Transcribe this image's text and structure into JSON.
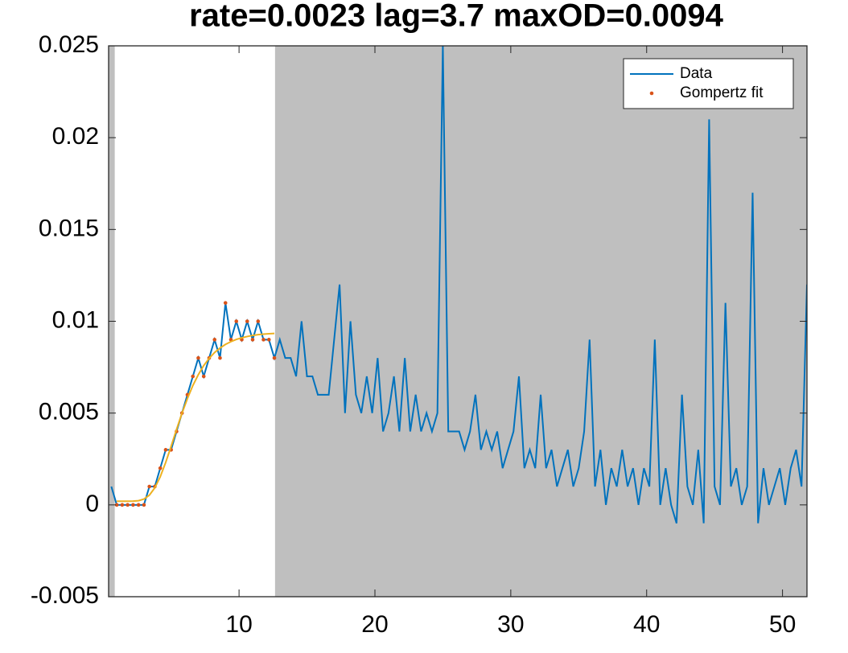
{
  "chart_data": {
    "type": "line",
    "title": "rate=0.0023 lag=3.7 maxOD=0.0094",
    "xlim": [
      0.4,
      51.8
    ],
    "ylim": [
      -0.005,
      0.025
    ],
    "xticks": [
      10,
      20,
      30,
      40,
      50
    ],
    "yticks": [
      -0.005,
      0,
      0.005,
      0.01,
      0.015,
      0.02,
      0.025
    ],
    "shaded_regions": [
      [
        0.4,
        0.85
      ],
      [
        12.65,
        51.8
      ]
    ],
    "shade_color": "#bfbfbf",
    "legend": "upper right",
    "series": [
      {
        "name": "Data",
        "color": "#0072bd",
        "style": "line",
        "x": [
          0.6,
          1.0,
          1.4,
          1.8,
          2.2,
          2.6,
          3.0,
          3.4,
          3.8,
          4.2,
          4.6,
          5.0,
          5.4,
          5.8,
          6.2,
          6.6,
          7.0,
          7.4,
          7.8,
          8.2,
          8.6,
          9.0,
          9.4,
          9.8,
          10.2,
          10.6,
          11.0,
          11.4,
          11.8,
          12.2,
          12.6,
          13.0,
          13.4,
          13.8,
          14.2,
          14.6,
          15.0,
          15.4,
          15.8,
          16.2,
          16.6,
          17.0,
          17.4,
          17.8,
          18.2,
          18.6,
          19.0,
          19.4,
          19.8,
          20.2,
          20.6,
          21.0,
          21.4,
          21.8,
          22.2,
          22.6,
          23.0,
          23.4,
          23.8,
          24.2,
          24.6,
          25.0,
          25.4,
          25.8,
          26.2,
          26.6,
          27.0,
          27.4,
          27.8,
          28.2,
          28.6,
          29.0,
          29.4,
          29.8,
          30.2,
          30.6,
          31.0,
          31.4,
          31.8,
          32.2,
          32.6,
          33.0,
          33.4,
          33.8,
          34.2,
          34.6,
          35.0,
          35.4,
          35.8,
          36.2,
          36.6,
          37.0,
          37.4,
          37.8,
          38.2,
          38.6,
          39.0,
          39.4,
          39.8,
          40.2,
          40.6,
          41.0,
          41.4,
          41.8,
          42.2,
          42.6,
          43.0,
          43.4,
          43.8,
          44.2,
          44.6,
          45.0,
          45.4,
          45.8,
          46.2,
          46.6,
          47.0,
          47.4,
          47.8,
          48.2,
          48.6,
          49.0,
          49.4,
          49.8,
          50.2,
          50.6,
          51.0,
          51.4,
          51.8
        ],
        "values": [
          0.001,
          0,
          0,
          0,
          0,
          0,
          0,
          0.001,
          0.001,
          0.002,
          0.003,
          0.003,
          0.004,
          0.005,
          0.006,
          0.007,
          0.008,
          0.007,
          0.008,
          0.009,
          0.008,
          0.011,
          0.009,
          0.01,
          0.009,
          0.01,
          0.009,
          0.01,
          0.009,
          0.009,
          0.008,
          0.009,
          0.008,
          0.008,
          0.007,
          0.01,
          0.007,
          0.007,
          0.006,
          0.006,
          0.006,
          0.009,
          0.012,
          0.005,
          0.01,
          0.006,
          0.005,
          0.007,
          0.005,
          0.008,
          0.004,
          0.005,
          0.007,
          0.004,
          0.008,
          0.004,
          0.006,
          0.004,
          0.005,
          0.004,
          0.005,
          0.025,
          0.004,
          0.004,
          0.004,
          0.003,
          0.004,
          0.006,
          0.003,
          0.004,
          0.003,
          0.004,
          0.002,
          0.003,
          0.004,
          0.007,
          0.002,
          0.003,
          0.002,
          0.006,
          0.002,
          0.003,
          0.001,
          0.002,
          0.003,
          0.001,
          0.002,
          0.004,
          0.009,
          0.001,
          0.003,
          0,
          0.002,
          0.001,
          0.003,
          0.001,
          0.002,
          0,
          0.002,
          0.001,
          0.009,
          0,
          0.002,
          0,
          -0.001,
          0.006,
          0.001,
          0,
          0.003,
          -0.001,
          0.021,
          0.001,
          0,
          0.011,
          0.001,
          0.002,
          0,
          0.001,
          0.017,
          -0.001,
          0.002,
          0,
          0.001,
          0.002,
          0,
          0.002,
          0.003,
          0.001,
          0.012
        ]
      },
      {
        "name": "Gompertz fit",
        "color": "#d95319",
        "style": "dots",
        "x": [
          1.0,
          1.4,
          1.8,
          2.2,
          2.6,
          3.0,
          3.4,
          3.8,
          4.2,
          4.6,
          5.0,
          5.4,
          5.8,
          6.2,
          6.6,
          7.0,
          7.4,
          7.8,
          8.2,
          8.6,
          9.0,
          9.4,
          9.8,
          10.2,
          10.6,
          11.0,
          11.4,
          11.8,
          12.2,
          12.6
        ],
        "values": [
          0,
          0,
          0,
          0,
          0,
          0,
          0.001,
          0.001,
          0.002,
          0.003,
          0.003,
          0.004,
          0.005,
          0.006,
          0.007,
          0.008,
          0.007,
          0.008,
          0.009,
          0.008,
          0.011,
          0.009,
          0.01,
          0.009,
          0.01,
          0.009,
          0.01,
          0.009,
          0.009,
          0.008
        ]
      },
      {
        "color": "#edb120",
        "style": "line",
        "x": [
          1.0,
          1.4,
          1.8,
          2.2,
          2.6,
          3.0,
          3.4,
          3.8,
          4.2,
          4.6,
          5.0,
          5.4,
          5.8,
          6.2,
          6.6,
          7.0,
          7.4,
          7.8,
          8.2,
          8.6,
          9.0,
          9.4,
          9.8,
          10.2,
          10.6,
          11.0,
          11.4,
          11.8,
          12.2,
          12.6
        ],
        "values": [
          0.0002,
          0.0002,
          0.0002,
          0.000205,
          0.00023,
          0.00032,
          0.00053,
          0.00093,
          0.00153,
          0.00231,
          0.00319,
          0.00411,
          0.00499,
          0.00579,
          0.0065,
          0.00709,
          0.00759,
          0.00798,
          0.0083,
          0.00854,
          0.00874,
          0.00889,
          0.00901,
          0.0091,
          0.00917,
          0.00923,
          0.00927,
          0.0093,
          0.00932,
          0.00934
        ]
      }
    ]
  }
}
